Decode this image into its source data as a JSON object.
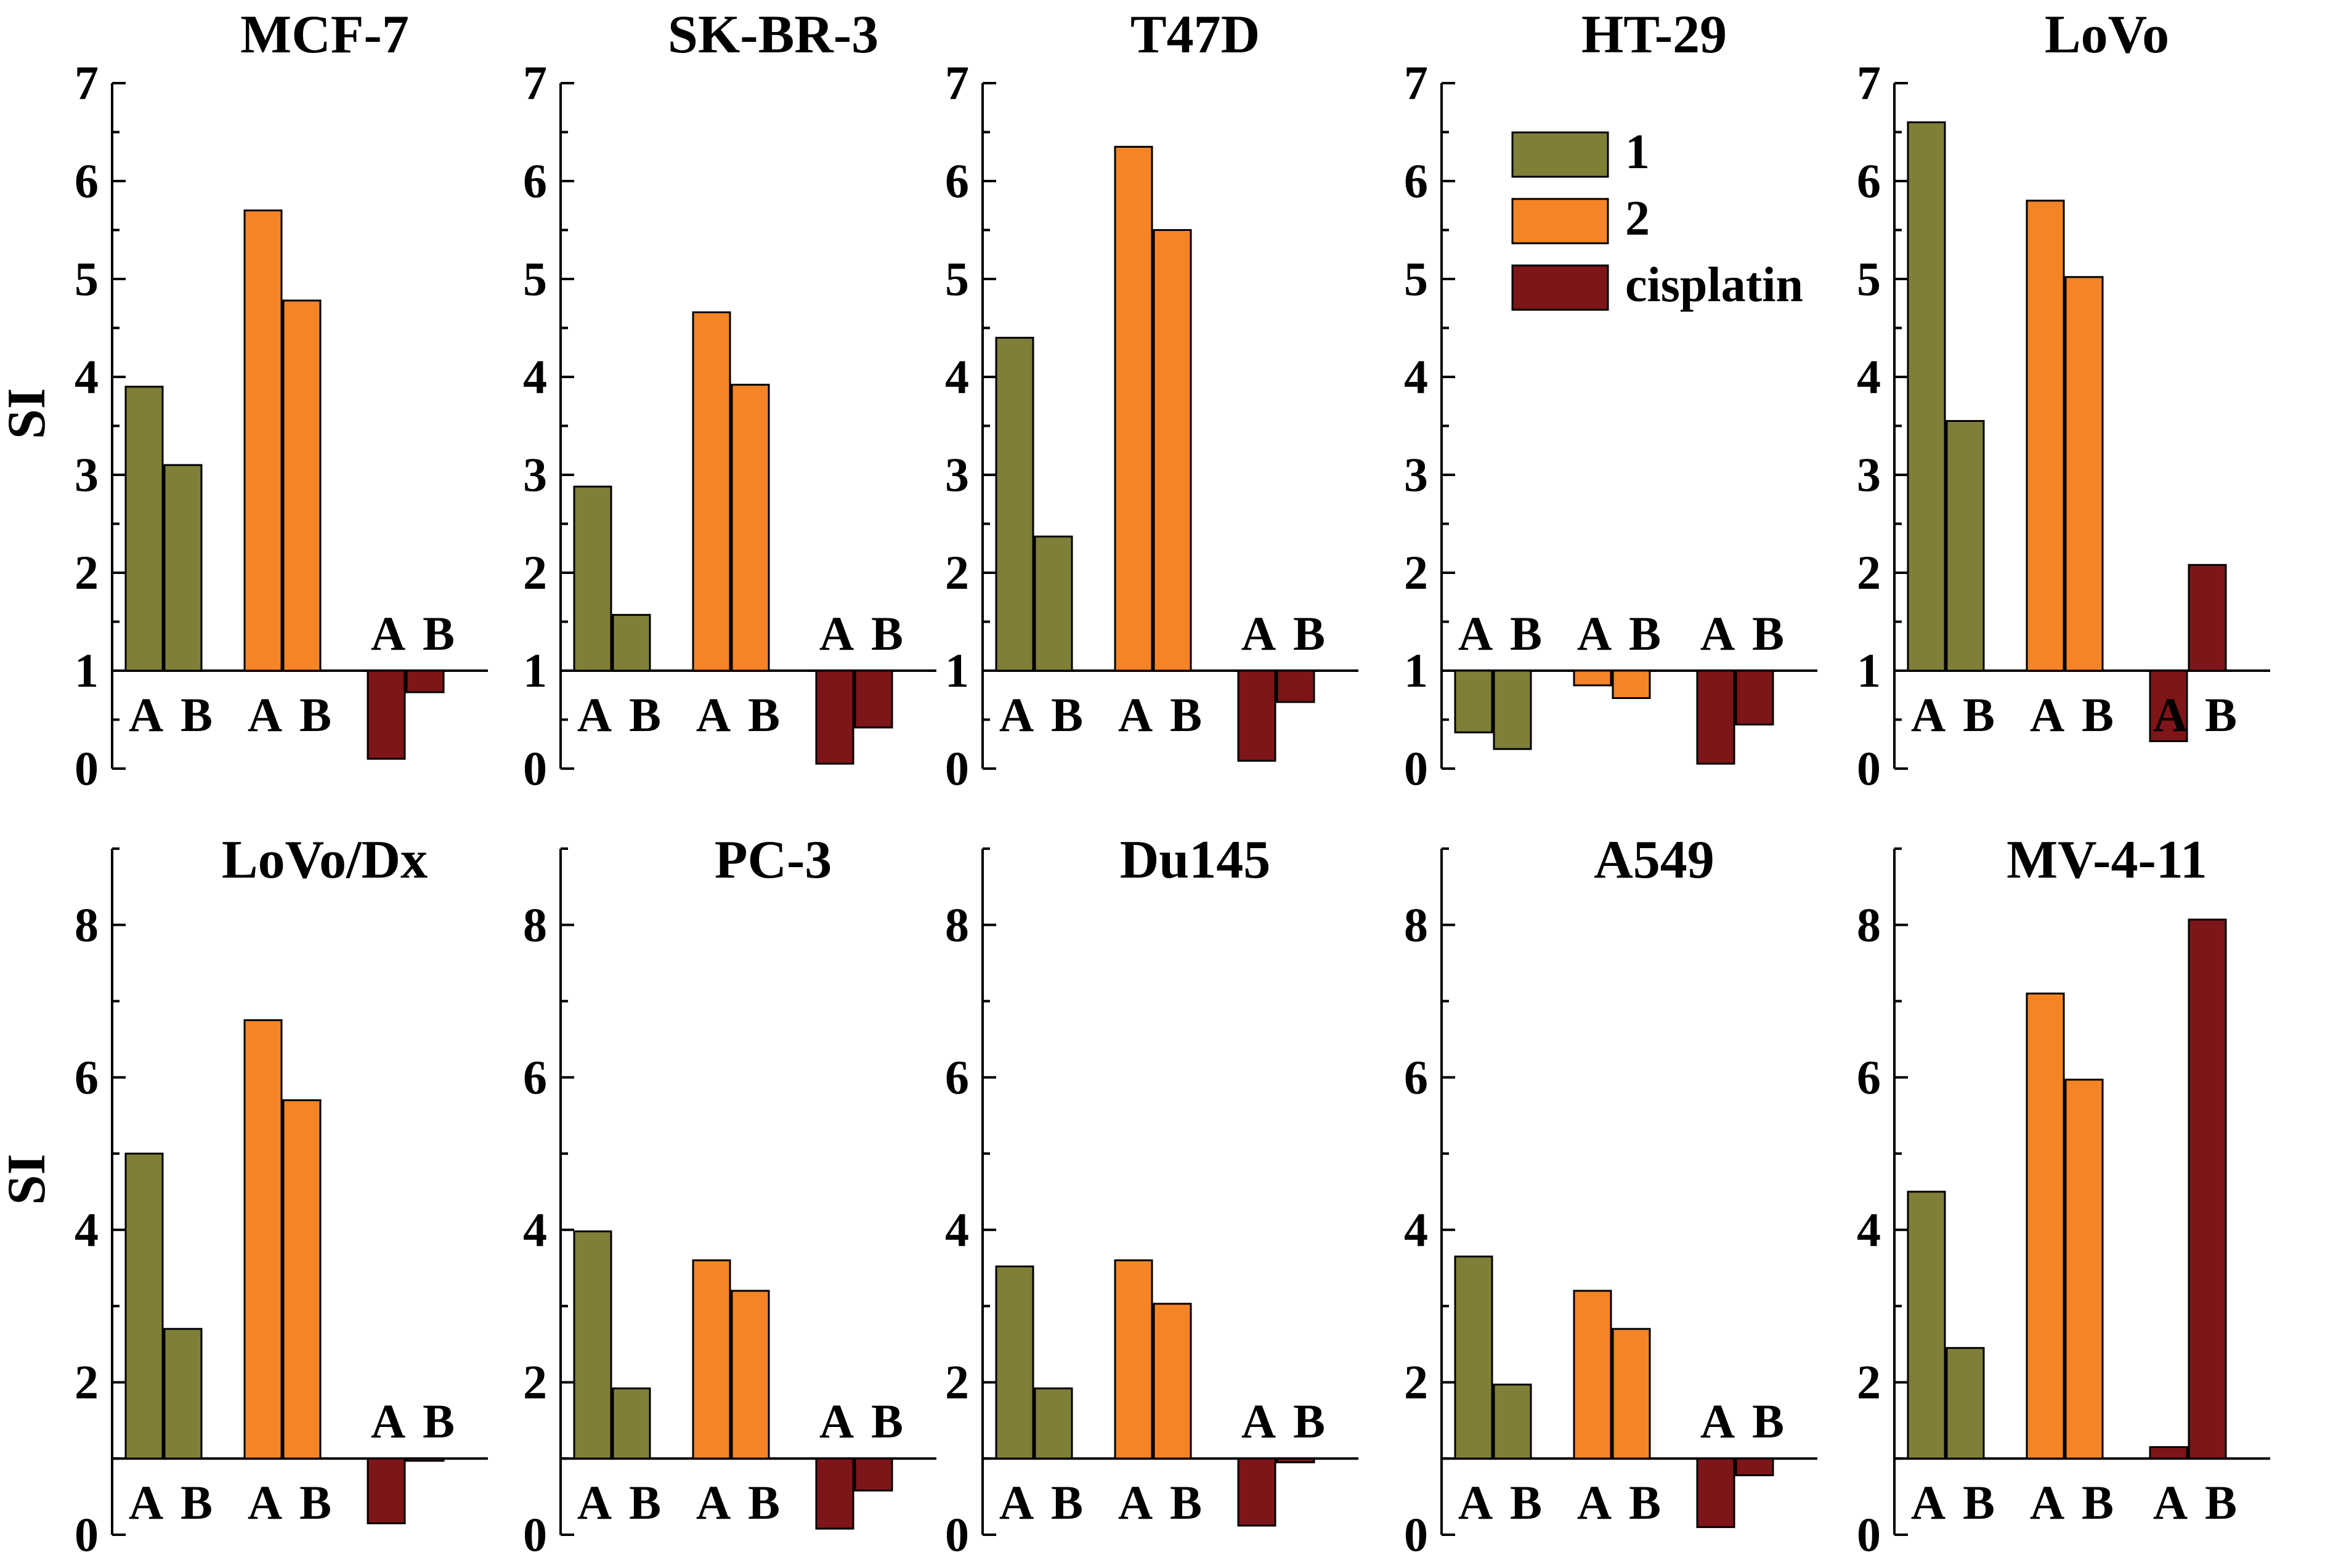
{
  "colors": {
    "compound1": "#7f7f38",
    "compound2": "#f58426",
    "cisplatin": "#7e1518"
  },
  "legend": [
    {
      "label": "1",
      "color_key": "compound1"
    },
    {
      "label": "2",
      "color_key": "compound2"
    },
    {
      "label": "cisplatin",
      "color_key": "cisplatin"
    }
  ],
  "chart_data": [
    {
      "type": "bar",
      "title": "MCF-7",
      "ylabel": "SI",
      "ylim": [
        0,
        7
      ],
      "yticks": [
        0,
        1,
        2,
        3,
        4,
        5,
        6,
        7
      ],
      "baseline": 1,
      "series": [
        {
          "name": "1",
          "values": [
            3.9,
            3.1
          ]
        },
        {
          "name": "2",
          "values": [
            5.7,
            4.78
          ]
        },
        {
          "name": "cisplatin",
          "values": [
            0.1,
            0.78
          ]
        }
      ],
      "bar_labels": [
        "A",
        "B"
      ]
    },
    {
      "type": "bar",
      "title": "SK-BR-3",
      "ylabel": "",
      "ylim": [
        0,
        7
      ],
      "yticks": [
        0,
        1,
        2,
        3,
        4,
        5,
        6,
        7
      ],
      "baseline": 1,
      "series": [
        {
          "name": "1",
          "values": [
            2.88,
            1.57
          ]
        },
        {
          "name": "2",
          "values": [
            4.66,
            3.92
          ]
        },
        {
          "name": "cisplatin",
          "values": [
            0.05,
            0.42
          ]
        }
      ],
      "bar_labels": [
        "A",
        "B"
      ]
    },
    {
      "type": "bar",
      "title": "T47D",
      "ylabel": "",
      "ylim": [
        0,
        7
      ],
      "yticks": [
        0,
        1,
        2,
        3,
        4,
        5,
        6,
        7
      ],
      "baseline": 1,
      "series": [
        {
          "name": "1",
          "values": [
            4.4,
            2.37
          ]
        },
        {
          "name": "2",
          "values": [
            6.35,
            5.5
          ]
        },
        {
          "name": "cisplatin",
          "values": [
            0.08,
            0.68
          ]
        }
      ],
      "bar_labels": [
        "A",
        "B"
      ]
    },
    {
      "type": "bar",
      "title": "HT-29",
      "ylabel": "",
      "ylim": [
        0,
        7
      ],
      "yticks": [
        0,
        1,
        2,
        3,
        4,
        5,
        6,
        7
      ],
      "baseline": 1,
      "series": [
        {
          "name": "1",
          "values": [
            0.37,
            0.2
          ]
        },
        {
          "name": "2",
          "values": [
            0.85,
            0.72
          ]
        },
        {
          "name": "cisplatin",
          "values": [
            0.05,
            0.45
          ]
        }
      ],
      "bar_labels": [
        "A",
        "B"
      ]
    },
    {
      "type": "bar",
      "title": "LoVo",
      "ylabel": "",
      "ylim": [
        0,
        7
      ],
      "yticks": [
        0,
        1,
        2,
        3,
        4,
        5,
        6,
        7
      ],
      "baseline": 1,
      "series": [
        {
          "name": "1",
          "values": [
            6.6,
            3.55
          ]
        },
        {
          "name": "2",
          "values": [
            5.8,
            5.02
          ]
        },
        {
          "name": "cisplatin",
          "values": [
            0.28,
            2.08
          ]
        }
      ],
      "bar_labels": [
        "A",
        "B"
      ]
    },
    {
      "type": "bar",
      "title": "LoVo/Dx",
      "ylabel": "SI",
      "ylim": [
        0,
        9
      ],
      "yticks": [
        0,
        2,
        4,
        6,
        8
      ],
      "baseline": 1,
      "series": [
        {
          "name": "1",
          "values": [
            5.0,
            2.7
          ]
        },
        {
          "name": "2",
          "values": [
            6.75,
            5.7
          ]
        },
        {
          "name": "cisplatin",
          "values": [
            0.15,
            0.97
          ]
        }
      ],
      "bar_labels": [
        "A",
        "B"
      ]
    },
    {
      "type": "bar",
      "title": "PC-3",
      "ylabel": "",
      "ylim": [
        0,
        9
      ],
      "yticks": [
        0,
        2,
        4,
        6,
        8
      ],
      "baseline": 1,
      "series": [
        {
          "name": "1",
          "values": [
            3.98,
            1.92
          ]
        },
        {
          "name": "2",
          "values": [
            3.6,
            3.2
          ]
        },
        {
          "name": "cisplatin",
          "values": [
            0.08,
            0.58
          ]
        }
      ],
      "bar_labels": [
        "A",
        "B"
      ]
    },
    {
      "type": "bar",
      "title": "Du145",
      "ylabel": "",
      "ylim": [
        0,
        9
      ],
      "yticks": [
        0,
        2,
        4,
        6,
        8
      ],
      "baseline": 1,
      "series": [
        {
          "name": "1",
          "values": [
            3.52,
            1.92
          ]
        },
        {
          "name": "2",
          "values": [
            3.6,
            3.03
          ]
        },
        {
          "name": "cisplatin",
          "values": [
            0.12,
            0.95
          ]
        }
      ],
      "bar_labels": [
        "A",
        "B"
      ]
    },
    {
      "type": "bar",
      "title": "A549",
      "ylabel": "",
      "ylim": [
        0,
        9
      ],
      "yticks": [
        0,
        2,
        4,
        6,
        8
      ],
      "baseline": 1,
      "series": [
        {
          "name": "1",
          "values": [
            3.65,
            1.97
          ]
        },
        {
          "name": "2",
          "values": [
            3.2,
            2.7
          ]
        },
        {
          "name": "cisplatin",
          "values": [
            0.1,
            0.78
          ]
        }
      ],
      "bar_labels": [
        "A",
        "B"
      ]
    },
    {
      "type": "bar",
      "title": "MV-4-11",
      "ylabel": "",
      "ylim": [
        0,
        9
      ],
      "yticks": [
        0,
        2,
        4,
        6,
        8
      ],
      "baseline": 1,
      "series": [
        {
          "name": "1",
          "values": [
            4.5,
            2.45
          ]
        },
        {
          "name": "2",
          "values": [
            7.1,
            5.97
          ]
        },
        {
          "name": "cisplatin",
          "values": [
            1.15,
            8.07
          ]
        }
      ],
      "bar_labels": [
        "A",
        "B"
      ]
    }
  ]
}
